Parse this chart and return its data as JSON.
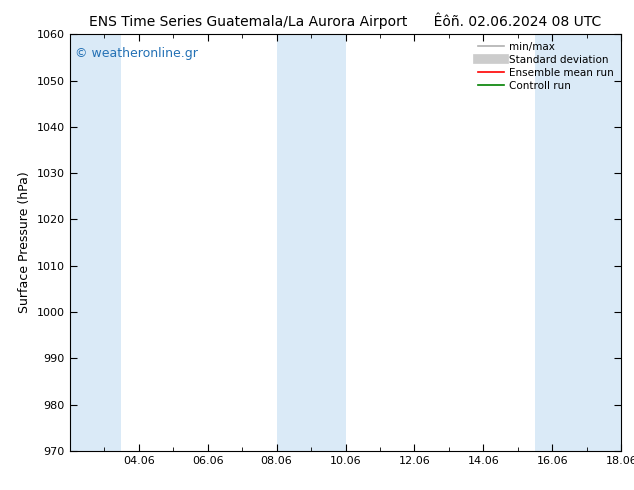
{
  "title": "ENS Time Series Guatemala/La Aurora Airport",
  "subtitle": "Êôñ. 02.06.2024 08 UTC",
  "ylabel": "Surface Pressure (hPa)",
  "ylim": [
    970,
    1060
  ],
  "yticks": [
    970,
    980,
    990,
    1000,
    1010,
    1020,
    1030,
    1040,
    1050,
    1060
  ],
  "xlim": [
    0,
    16
  ],
  "xtick_labels": [
    "04.06",
    "06.06",
    "08.06",
    "10.06",
    "12.06",
    "14.06",
    "16.06",
    "18.06"
  ],
  "xtick_positions": [
    2,
    4,
    6,
    8,
    10,
    12,
    14,
    16
  ],
  "shaded_bands": [
    {
      "x_start": 0,
      "x_end": 1.5,
      "color": "#daeaf7"
    },
    {
      "x_start": 6,
      "x_end": 8,
      "color": "#daeaf7"
    },
    {
      "x_start": 13.5,
      "x_end": 16,
      "color": "#daeaf7"
    }
  ],
  "watermark": "© weatheronline.gr",
  "legend_entries": [
    {
      "label": "min/max",
      "color": "#b0b0b0",
      "linewidth": 1.2,
      "type": "line"
    },
    {
      "label": "Standard deviation",
      "color": "#cccccc",
      "linewidth": 7,
      "type": "line"
    },
    {
      "label": "Ensemble mean run",
      "color": "red",
      "linewidth": 1.2,
      "type": "line"
    },
    {
      "label": "Controll run",
      "color": "green",
      "linewidth": 1.2,
      "type": "line"
    }
  ],
  "bg_color": "#ffffff",
  "plot_bg_color": "#ffffff",
  "title_fontsize": 10,
  "subtitle_fontsize": 10,
  "ylabel_fontsize": 9,
  "tick_fontsize": 8,
  "watermark_fontsize": 9,
  "legend_fontsize": 7.5
}
